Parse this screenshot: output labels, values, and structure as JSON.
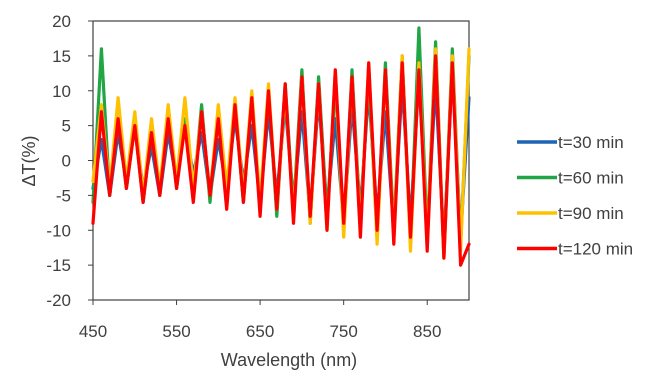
{
  "chart_data": {
    "type": "line",
    "xlabel": "Wavelength (nm)",
    "ylabel": "ΔT(%)",
    "xlim": [
      450,
      900
    ],
    "ylim": [
      -20,
      20
    ],
    "x_ticks": [
      "450",
      "550",
      "650",
      "750",
      "850"
    ],
    "y_ticks": [
      "20",
      "15",
      "10",
      "5",
      "0",
      "-5",
      "-10",
      "-15",
      "-20"
    ],
    "grid": false,
    "legend_position": "right",
    "x": [
      450,
      460,
      470,
      480,
      490,
      500,
      510,
      520,
      530,
      540,
      550,
      560,
      570,
      580,
      590,
      600,
      610,
      620,
      630,
      640,
      650,
      660,
      670,
      680,
      690,
      700,
      710,
      720,
      730,
      740,
      750,
      760,
      770,
      780,
      790,
      800,
      810,
      820,
      830,
      840,
      850,
      860,
      870,
      880,
      890,
      900
    ],
    "series": [
      {
        "name": "t=30 min",
        "color": "#1f63b4",
        "values": [
          -4,
          3,
          -5,
          4,
          -3,
          5,
          -4,
          2,
          -5,
          4,
          -3,
          5,
          -2,
          4,
          -5,
          3,
          -4,
          6,
          -3,
          5,
          -6,
          7,
          -5,
          8,
          -6,
          7,
          -8,
          9,
          -7,
          6,
          -9,
          8,
          -7,
          10,
          -8,
          7,
          -10,
          11,
          -9,
          12,
          -10,
          11,
          -12,
          13,
          -11,
          9
        ]
      },
      {
        "name": "t=60 min",
        "color": "#21a645",
        "values": [
          -6,
          16,
          -5,
          6,
          -4,
          5,
          -6,
          4,
          -5,
          7,
          -4,
          6,
          -5,
          8,
          -6,
          7,
          -5,
          8,
          -6,
          9,
          -7,
          10,
          -8,
          11,
          -7,
          13,
          -9,
          12,
          -8,
          11,
          -10,
          13,
          -9,
          12,
          -11,
          14,
          -10,
          15,
          -12,
          19,
          -11,
          17,
          -14,
          16,
          -12,
          15
        ]
      },
      {
        "name": "t=90 min",
        "color": "#ffc000",
        "values": [
          -3,
          8,
          -4,
          9,
          -3,
          7,
          -5,
          6,
          -4,
          8,
          -3,
          9,
          -4,
          7,
          -5,
          8,
          -4,
          9,
          -5,
          10,
          -6,
          11,
          -7,
          10,
          -8,
          12,
          -9,
          11,
          -10,
          13,
          -11,
          12,
          -10,
          14,
          -12,
          13,
          -11,
          15,
          -13,
          14,
          -12,
          16,
          -14,
          15,
          -13,
          16
        ]
      },
      {
        "name": "t=120 min",
        "color": "#ff0000",
        "values": [
          -9,
          7,
          -5,
          6,
          -4,
          5,
          -6,
          4,
          -5,
          6,
          -4,
          5,
          -6,
          7,
          -5,
          6,
          -7,
          8,
          -6,
          9,
          -8,
          10,
          -7,
          11,
          -9,
          12,
          -8,
          11,
          -10,
          13,
          -9,
          12,
          -11,
          14,
          -10,
          13,
          -12,
          14,
          -11,
          13,
          -13,
          15,
          -14,
          14,
          -15,
          -12
        ]
      }
    ]
  }
}
